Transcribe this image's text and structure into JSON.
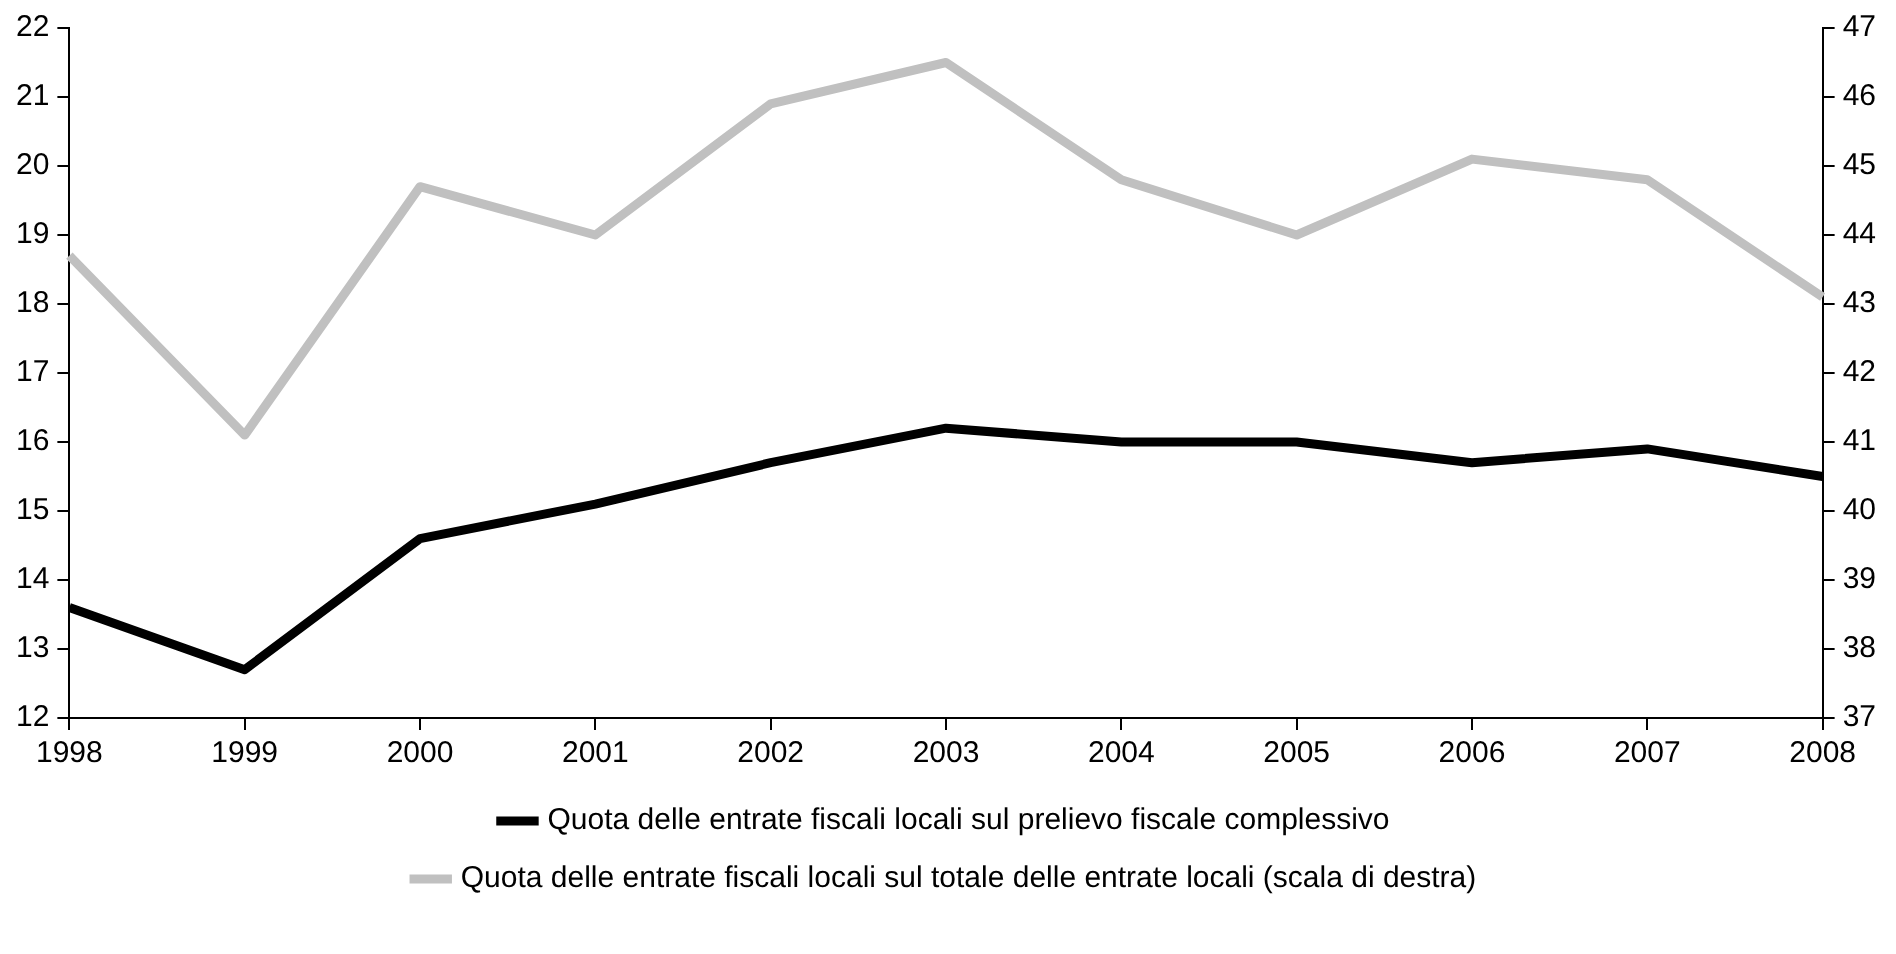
{
  "chart_data": {
    "type": "line",
    "categories": [
      "1998",
      "1999",
      "2000",
      "2001",
      "2002",
      "2003",
      "2004",
      "2005",
      "2006",
      "2007",
      "2008"
    ],
    "series": [
      {
        "name": "Quota delle entrate fiscali locali sul prelievo fiscale complessivo",
        "color": "#000000",
        "values": [
          13.6,
          12.7,
          14.6,
          15.1,
          15.7,
          16.2,
          16.0,
          16.0,
          15.7,
          15.9,
          15.5
        ]
      },
      {
        "name": "Quota delle entrate fiscali locali sul totale delle entrate locali (scala di destra)",
        "color": "#c0c0c0",
        "axis": "y2",
        "values": [
          43.7,
          41.1,
          44.7,
          44.0,
          45.9,
          46.5,
          44.8,
          44.0,
          45.1,
          44.8,
          43.1
        ]
      }
    ],
    "ylim": [
      12,
      22
    ],
    "yticks": [
      12,
      13,
      14,
      15,
      16,
      17,
      18,
      19,
      20,
      21,
      22
    ],
    "y2lim": [
      37,
      47
    ],
    "y2ticks": [
      37,
      38,
      39,
      40,
      41,
      42,
      43,
      44,
      45,
      46,
      47
    ],
    "grid": false,
    "legend": "bottom",
    "marker": "none",
    "line_style": "solid"
  }
}
